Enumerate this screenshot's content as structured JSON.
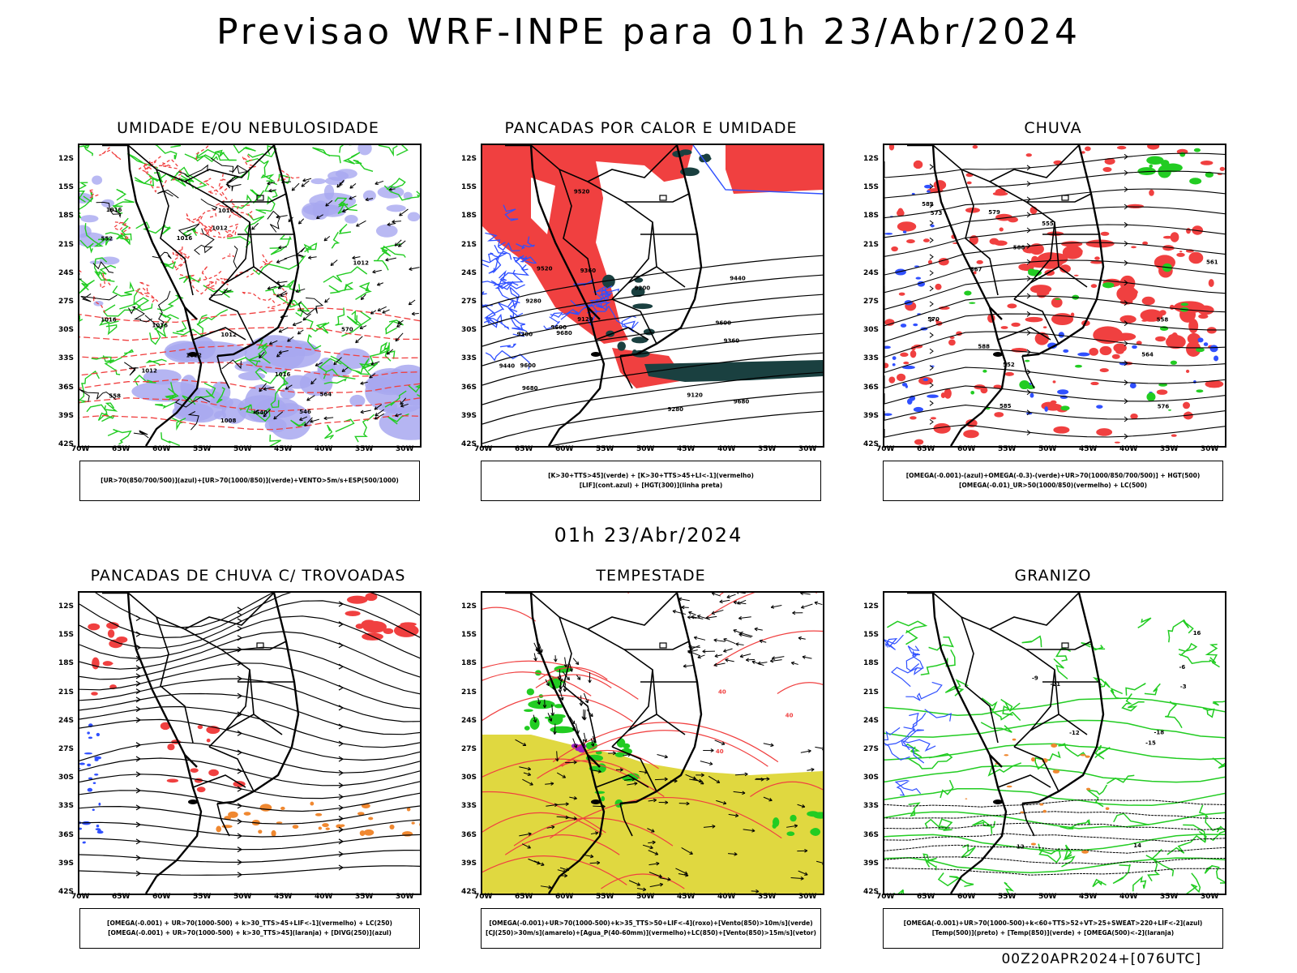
{
  "main_title": "Previsao WRF-INPE  para 01h 23/Abr/2024",
  "mid_title": "01h 23/Abr/2024",
  "footer": "00Z20APR2024+[076UTC]",
  "lat_labels": [
    "12S",
    "15S",
    "18S",
    "21S",
    "24S",
    "27S",
    "30S",
    "33S",
    "36S",
    "39S",
    "42S"
  ],
  "lon_labels": [
    "70W",
    "65W",
    "60W",
    "55W",
    "50W",
    "45W",
    "40W",
    "35W",
    "30W"
  ],
  "colors": {
    "red": "#f04040",
    "green": "#22cc22",
    "blue": "#3050ff",
    "lavender": "#a8a8f0",
    "yellow": "#e0d840",
    "darkgreen": "#1a4040",
    "orange": "#f08830",
    "purple": "#a020c0"
  },
  "panels": [
    {
      "title": "UMIDADE E/OU NEBULOSIDADE",
      "legend": [
        "[UR>70(850/700/500)](azul)+[UR>70(1000/850)](verde)+VENTO>5m/s+ESP(500/1000)"
      ],
      "contour_labels": [
        "1012",
        "1016",
        "1012",
        "1016",
        "1016",
        "1008",
        "1016",
        "1012",
        "1012",
        "1016",
        "1016",
        "1012",
        "570",
        "564",
        "558",
        "552",
        "546",
        "540"
      ]
    },
    {
      "title": "PANCADAS POR CALOR E UMIDADE",
      "legend": [
        "[K>30+TTS>45](verde) + [K>30+TTS>45+LI<-1](vermelho)",
        "[LIF](cont.azul) + [HGT(300)](linha preta)"
      ],
      "contour_labels": [
        "9680",
        "9680",
        "9600",
        "9680",
        "9600",
        "9520",
        "9440",
        "9360",
        "9280",
        "9200",
        "9120",
        "9600",
        "9520",
        "9440",
        "9360",
        "9280",
        "9200",
        "9120"
      ]
    },
    {
      "title": "CHUVA",
      "legend": [
        "[OMEGA(-0.001)-(azul)+OMEGA(-0.3)-(verde)+UR>70(1000/850/700/500)] + HGT(500)",
        "[OMEGA(-0.01)_UR>50(1000/850)(vermelho) + LC(500)"
      ],
      "contour_labels": [
        "588",
        "588",
        "585",
        "582",
        "579",
        "576",
        "573",
        "570",
        "567",
        "564",
        "561",
        "558",
        "555",
        "552"
      ]
    },
    {
      "title": "PANCADAS DE CHUVA C/ TROVOADAS",
      "legend": [
        "[OMEGA(-0.001) + UR>70(1000-500) + k>30_TTS>45+LIF<-1](vermelho) + LC(250)",
        "[OMEGA(-0.001) + UR>70(1000-500) + k>30_TTS>45](laranja) + [DIVG(250)](azul)"
      ],
      "contour_labels": []
    },
    {
      "title": "TEMPESTADE",
      "legend": [
        "[OMEGA(-0.001)+UR>70(1000-500)+k>35_TTS>50+LIF<-4](roxo)+[Vento(850)>10m/s](verde)",
        "[CJ(250)>30m/s](amarelo)+[Agua_P(40-60mm)](vermelho)+LC(850)+[Vento(850)>15m/s](vetor)"
      ],
      "contour_labels": [
        "40",
        "40",
        "40"
      ]
    },
    {
      "title": "GRANIZO",
      "legend": [
        "[OMEGA(-0.001)+UR>70(1000-500)+k<60+TTS>52+VT>25+SWEAT>220+LIF<-2](azul)",
        "[Temp(500)](preto) + [Temp(850)](verde) + [OMEGA(500)<-2](laranja)"
      ],
      "contour_labels": [
        "-3",
        "-6",
        "-9",
        "-12",
        "-15",
        "-18",
        "-21",
        "12",
        "14",
        "16"
      ]
    }
  ]
}
